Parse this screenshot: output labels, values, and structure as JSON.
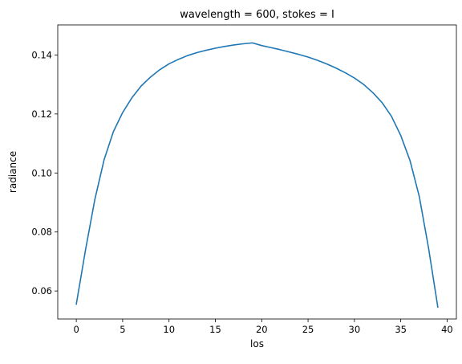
{
  "chart_data": {
    "type": "line",
    "title": "wavelength = 600, stokes = I",
    "xlabel": "los",
    "ylabel": "radiance",
    "xlim": [
      -2,
      41
    ],
    "ylim": [
      0.0505,
      0.1502
    ],
    "xticks": [
      0,
      5,
      10,
      15,
      20,
      25,
      30,
      35,
      40
    ],
    "xtick_labels": [
      "0",
      "5",
      "10",
      "15",
      "20",
      "25",
      "30",
      "35",
      "40"
    ],
    "yticks": [
      0.06,
      0.08,
      0.1,
      0.12,
      0.14
    ],
    "ytick_labels": [
      "0.06",
      "0.08",
      "0.10",
      "0.12",
      "0.14"
    ],
    "grid": false,
    "series": [
      {
        "color": "#1f77b4",
        "x": [
          0,
          1,
          2,
          3,
          4,
          5,
          6,
          7,
          8,
          9,
          10,
          11,
          12,
          13,
          14,
          15,
          16,
          17,
          18,
          19,
          20,
          21,
          22,
          23,
          24,
          25,
          26,
          27,
          28,
          29,
          30,
          31,
          32,
          33,
          34,
          35,
          36,
          37,
          38,
          39
        ],
        "y": [
          0.0555,
          0.074,
          0.091,
          0.1045,
          0.114,
          0.1205,
          0.1255,
          0.1295,
          0.1325,
          0.135,
          0.137,
          0.1385,
          0.1398,
          0.1408,
          0.1416,
          0.1423,
          0.1429,
          0.1434,
          0.1438,
          0.1441,
          0.1432,
          0.1425,
          0.1418,
          0.141,
          0.1402,
          0.1393,
          0.1382,
          0.137,
          0.1356,
          0.134,
          0.1322,
          0.13,
          0.1272,
          0.1238,
          0.1192,
          0.1127,
          0.1042,
          0.092,
          0.0745,
          0.0545
        ]
      }
    ]
  }
}
